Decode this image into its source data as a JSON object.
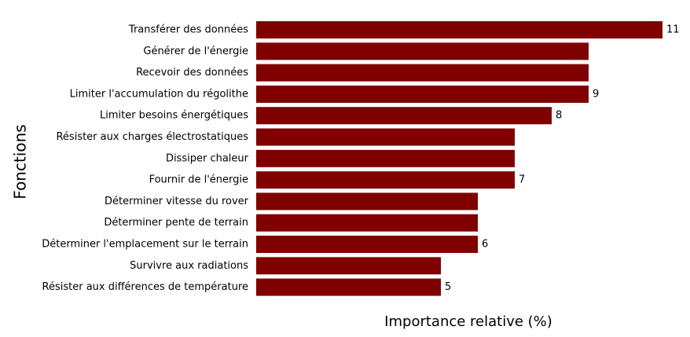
{
  "chart_data": {
    "type": "bar",
    "orientation": "horizontal",
    "title": "",
    "xlabel": "Importance relative (%)",
    "ylabel": "Fonctions",
    "xlim": [
      0,
      11
    ],
    "grid": false,
    "legend": "none",
    "bar_color": "#800000",
    "categories": [
      "Transférer des données",
      "Générer de l'énergie",
      "Recevoir des données",
      "Limiter l'accumulation du régolithe",
      "Limiter besoins énergétiques",
      "Résister aux charges électrostatiques",
      "Dissiper chaleur",
      "Fournir de l'énergie",
      "Déterminer vitesse du rover",
      "Déterminer pente de terrain",
      "Déterminer l'emplacement sur le terrain",
      "Survivre aux radiations",
      "Résister aux différences de température"
    ],
    "values": [
      11,
      9,
      9,
      9,
      8,
      7,
      7,
      7,
      6,
      6,
      6,
      5,
      5
    ],
    "data_labels": [
      "11",
      "",
      "",
      "9",
      "8",
      "",
      "",
      "7",
      "",
      "",
      "6",
      "",
      "5"
    ]
  }
}
